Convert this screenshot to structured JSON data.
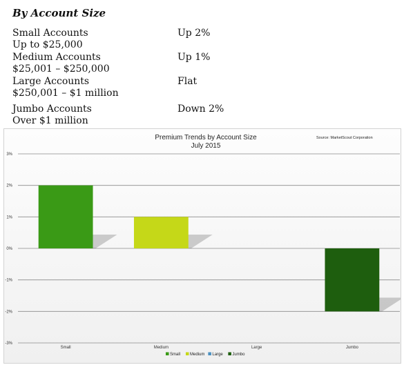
{
  "heading": "By Account Size",
  "rows": [
    {
      "name": "Small Accounts",
      "range": "Up to $25,000",
      "trend": "Up 2%"
    },
    {
      "name": "Medium Accounts",
      "range": "$25,001 – $250,000",
      "trend": "Up 1%"
    },
    {
      "name": "Large Accounts",
      "range": "$250,001 – $1 million",
      "trend": "Flat"
    },
    {
      "name": "Jumbo Accounts",
      "range": "Over $1 million",
      "trend": "Down 2%"
    }
  ],
  "chart_data": {
    "type": "bar",
    "title": "Premium Trends by Account Size",
    "subtitle": "July 2015",
    "source": "Source: MarketScout Corporation",
    "categories": [
      "Small",
      "Medium",
      "Large",
      "Jumbo"
    ],
    "values": [
      2,
      1,
      0,
      -2
    ],
    "colors": [
      "#3a9a16",
      "#c5d818",
      "#4a90c0",
      "#1e5e0e"
    ],
    "legend": [
      "Small",
      "Medium",
      "Large",
      "Jumbo"
    ],
    "legend_position": "bottom",
    "yticks": [
      "3%",
      "2%",
      "1%",
      "0%",
      "-1%",
      "-2%",
      "-3%"
    ],
    "ylim": [
      -3,
      3
    ],
    "grid": true
  }
}
